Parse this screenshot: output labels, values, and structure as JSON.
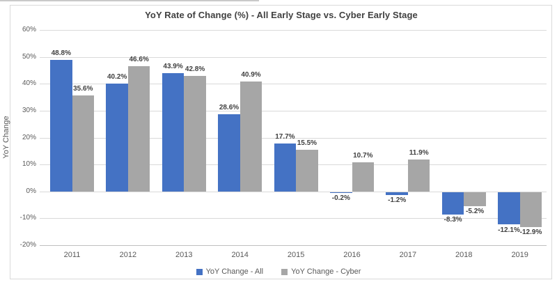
{
  "chart_data": {
    "type": "bar",
    "title": "YoY Rate of Change (%) - All Early Stage vs. Cyber Early Stage",
    "xlabel": "",
    "ylabel": "YoY Change",
    "categories": [
      "2011",
      "2012",
      "2013",
      "2014",
      "2015",
      "2016",
      "2017",
      "2018",
      "2019"
    ],
    "series": [
      {
        "name": "YoY Change - All",
        "color": "#4472c4",
        "values": [
          48.8,
          40.2,
          43.9,
          28.6,
          17.7,
          -0.2,
          -1.2,
          -8.3,
          -12.1
        ]
      },
      {
        "name": "YoY Change - Cyber",
        "color": "#a6a6a6",
        "values": [
          35.6,
          46.6,
          42.8,
          40.9,
          15.5,
          10.7,
          11.9,
          -5.2,
          -12.9
        ]
      }
    ],
    "data_labels": {
      "all": [
        "48.8%",
        "40.2%",
        "43.9%",
        "28.6%",
        "17.7%",
        "-0.2%",
        "-1.2%",
        "-8.3%",
        "-12.1%"
      ],
      "cyber": [
        "35.6%",
        "46.6%",
        "42.8%",
        "40.9%",
        "15.5%",
        "10.7%",
        "11.9%",
        "-5.2%",
        "-12.9%"
      ]
    },
    "ylim": [
      -20,
      60
    ],
    "ytick_step": 10,
    "ytick_labels": [
      "60%",
      "50%",
      "40%",
      "30%",
      "20%",
      "10%",
      "0%",
      "-10%",
      "-20%"
    ],
    "grid": true,
    "legend_position": "bottom"
  },
  "colors": {
    "grid": "#d9d9d9",
    "axis_line": "#bfbfbf",
    "box_border": "#d9d9d9",
    "title_text": "#404040",
    "tick_text": "#595959",
    "label_text": "#404040",
    "background": "#ffffff"
  }
}
